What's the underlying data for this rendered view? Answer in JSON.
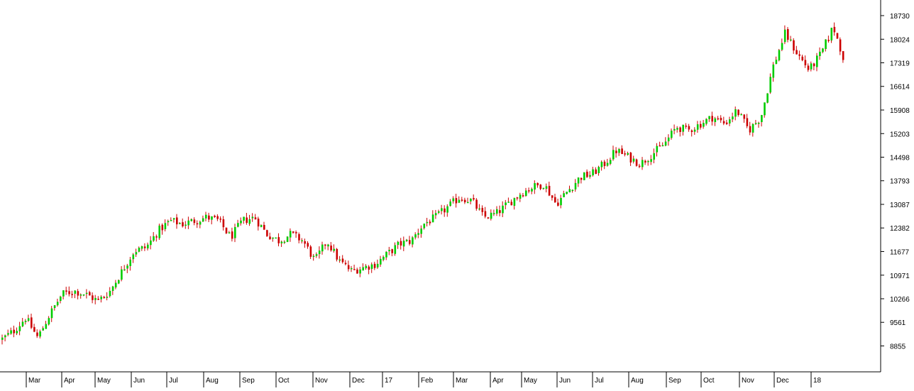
{
  "chart_data": {
    "type": "candlestick",
    "title": "",
    "xlabel": "",
    "ylabel": "",
    "grid": false,
    "legend": "none",
    "y_axis_side": "right",
    "ylim": [
      8300,
      19100
    ],
    "y_ticks": [
      8855,
      9561,
      10266,
      10971,
      11677,
      12382,
      13087,
      13793,
      14498,
      15203,
      15908,
      16614,
      17319,
      18024,
      18730
    ],
    "x_ticks": [
      "Mar",
      "Apr",
      "May",
      "Jun",
      "Jul",
      "Aug",
      "Sep",
      "Oct",
      "Nov",
      "Dec",
      "17",
      "Feb",
      "Mar",
      "Apr",
      "May",
      "Jun",
      "Jul",
      "Aug",
      "Sep",
      "Oct",
      "Nov",
      "Dec",
      "18"
    ],
    "colors": {
      "up": "#00cc00",
      "down": "#cc0000",
      "axis": "#000000",
      "background": "#ffffff"
    },
    "series": [
      {
        "close_path": [
          [
            "Mar",
            9050
          ],
          [
            "",
            9300
          ],
          [
            "",
            9700
          ],
          [
            "",
            9100
          ],
          [
            "Apr",
            9800
          ],
          [
            "",
            10400
          ],
          [
            "",
            10500
          ],
          [
            "May",
            10400
          ],
          [
            "",
            10200
          ],
          [
            "",
            10500
          ],
          [
            "Jun",
            11100
          ],
          [
            "",
            11700
          ],
          [
            "",
            11800
          ],
          [
            "Jul",
            12300
          ],
          [
            "",
            12600
          ],
          [
            "",
            12500
          ],
          [
            "Aug",
            12600
          ],
          [
            "",
            12700
          ],
          [
            "",
            12600
          ],
          [
            "Sep",
            12100
          ],
          [
            "",
            12600
          ],
          [
            "",
            12700
          ],
          [
            "Oct",
            12200
          ],
          [
            "",
            12000
          ],
          [
            "",
            12200
          ],
          [
            "Nov",
            12000
          ],
          [
            "",
            11400
          ],
          [
            "",
            12000
          ],
          [
            "Dec",
            11400
          ],
          [
            "",
            11100
          ],
          [
            "",
            11200
          ],
          [
            "17",
            11300
          ],
          [
            "",
            11600
          ],
          [
            "",
            11900
          ],
          [
            "Feb",
            12000
          ],
          [
            "",
            12500
          ],
          [
            "",
            12700
          ],
          [
            "Mar",
            13000
          ],
          [
            "",
            13300
          ],
          [
            "",
            13200
          ],
          [
            "Apr",
            12700
          ],
          [
            "",
            12800
          ],
          [
            "",
            13100
          ],
          [
            "May",
            13400
          ],
          [
            "",
            13600
          ],
          [
            "",
            13700
          ],
          [
            "Jun",
            13100
          ],
          [
            "",
            13500
          ],
          [
            "",
            13900
          ],
          [
            "Jul",
            14000
          ],
          [
            "",
            14300
          ],
          [
            "",
            14700
          ],
          [
            "Aug",
            14500
          ],
          [
            "",
            14300
          ],
          [
            "",
            14600
          ],
          [
            "Sep",
            14900
          ],
          [
            "",
            15400
          ],
          [
            "",
            15300
          ],
          [
            "Oct",
            15500
          ],
          [
            "",
            15700
          ],
          [
            "",
            15500
          ],
          [
            "Nov",
            15900
          ],
          [
            "",
            15300
          ],
          [
            "",
            15700
          ],
          [
            "Dec",
            17200
          ],
          [
            "",
            18200
          ],
          [
            "",
            17600
          ],
          [
            "18",
            17100
          ],
          [
            "",
            17600
          ],
          [
            "",
            18400
          ],
          [
            "",
            17300
          ]
        ]
      }
    ]
  }
}
